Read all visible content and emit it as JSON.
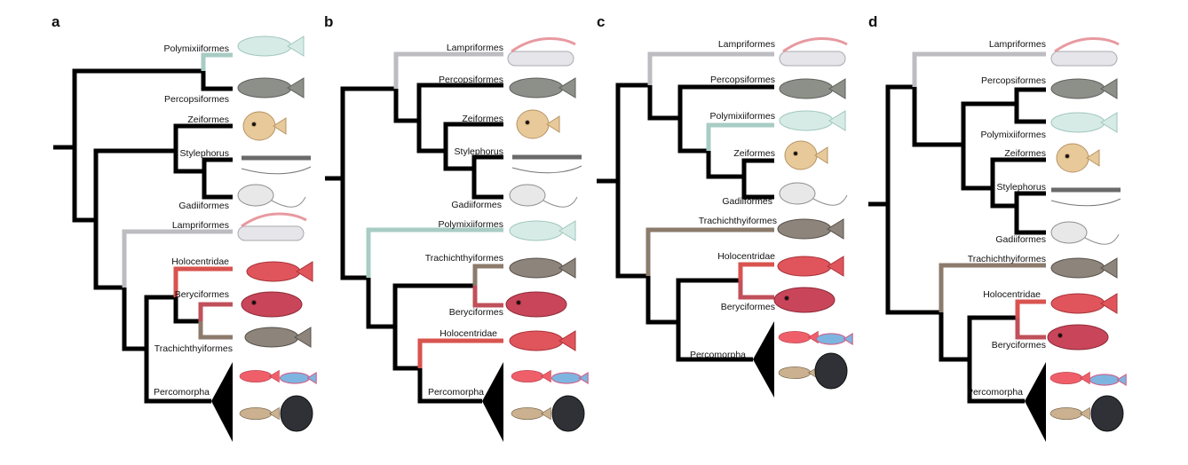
{
  "colors": {
    "black": "#000000",
    "polymixii": "#a8ccc4",
    "lampri": "#bdbdc1",
    "holocentridae": "#d9534f",
    "beryciformes": "#c0505a",
    "trachichthy": "#8c7b6c"
  },
  "panels": [
    {
      "letter": "a",
      "taxa": {
        "polymixii": "Polymixiiformes",
        "percopsi": "Percopsiformes",
        "zei": "Zeiformes",
        "styleph": "Stylephorus",
        "gadi": "Gadiiformes",
        "lampri": "Lampriformes",
        "holo": "Holocentridae",
        "beryci": "Beryciformes",
        "trachi": "Trachichthyiformes",
        "percom": "Percomorpha"
      }
    },
    {
      "letter": "b",
      "taxa": {
        "lampri": "Lampriformes",
        "percopsi": "Percopsiformes",
        "zei": "Zeiformes",
        "styleph": "Stylephorus",
        "gadi": "Gadiiformes",
        "polymixii": "Polymixiiformes",
        "trachi": "Trachichthyiformes",
        "beryci": "Beryciformes",
        "holo": "Holocentridae",
        "percom": "Percomorpha"
      }
    },
    {
      "letter": "c",
      "taxa": {
        "lampri": "Lampriformes",
        "percopsi": "Percopsiformes",
        "polymixii": "Polymixiiformes",
        "zei": "Zeiformes",
        "gadi": "Gadiiformes",
        "trachi": "Trachichthyiformes",
        "holo": "Holocentridae",
        "beryci": "Beryciformes",
        "percom": "Percomorpha"
      }
    },
    {
      "letter": "d",
      "taxa": {
        "lampri": "Lampriformes",
        "percopsi": "Percopsiformes",
        "polymixii": "Polymixiiformes",
        "zei": "Zeiformes",
        "styleph": "Stylephorus",
        "gadi": "Gadiiformes",
        "trachi": "Trachichthyiformes",
        "holo": "Holocentridae",
        "beryci": "Beryciformes",
        "percom": "Percomorpha"
      }
    }
  ]
}
